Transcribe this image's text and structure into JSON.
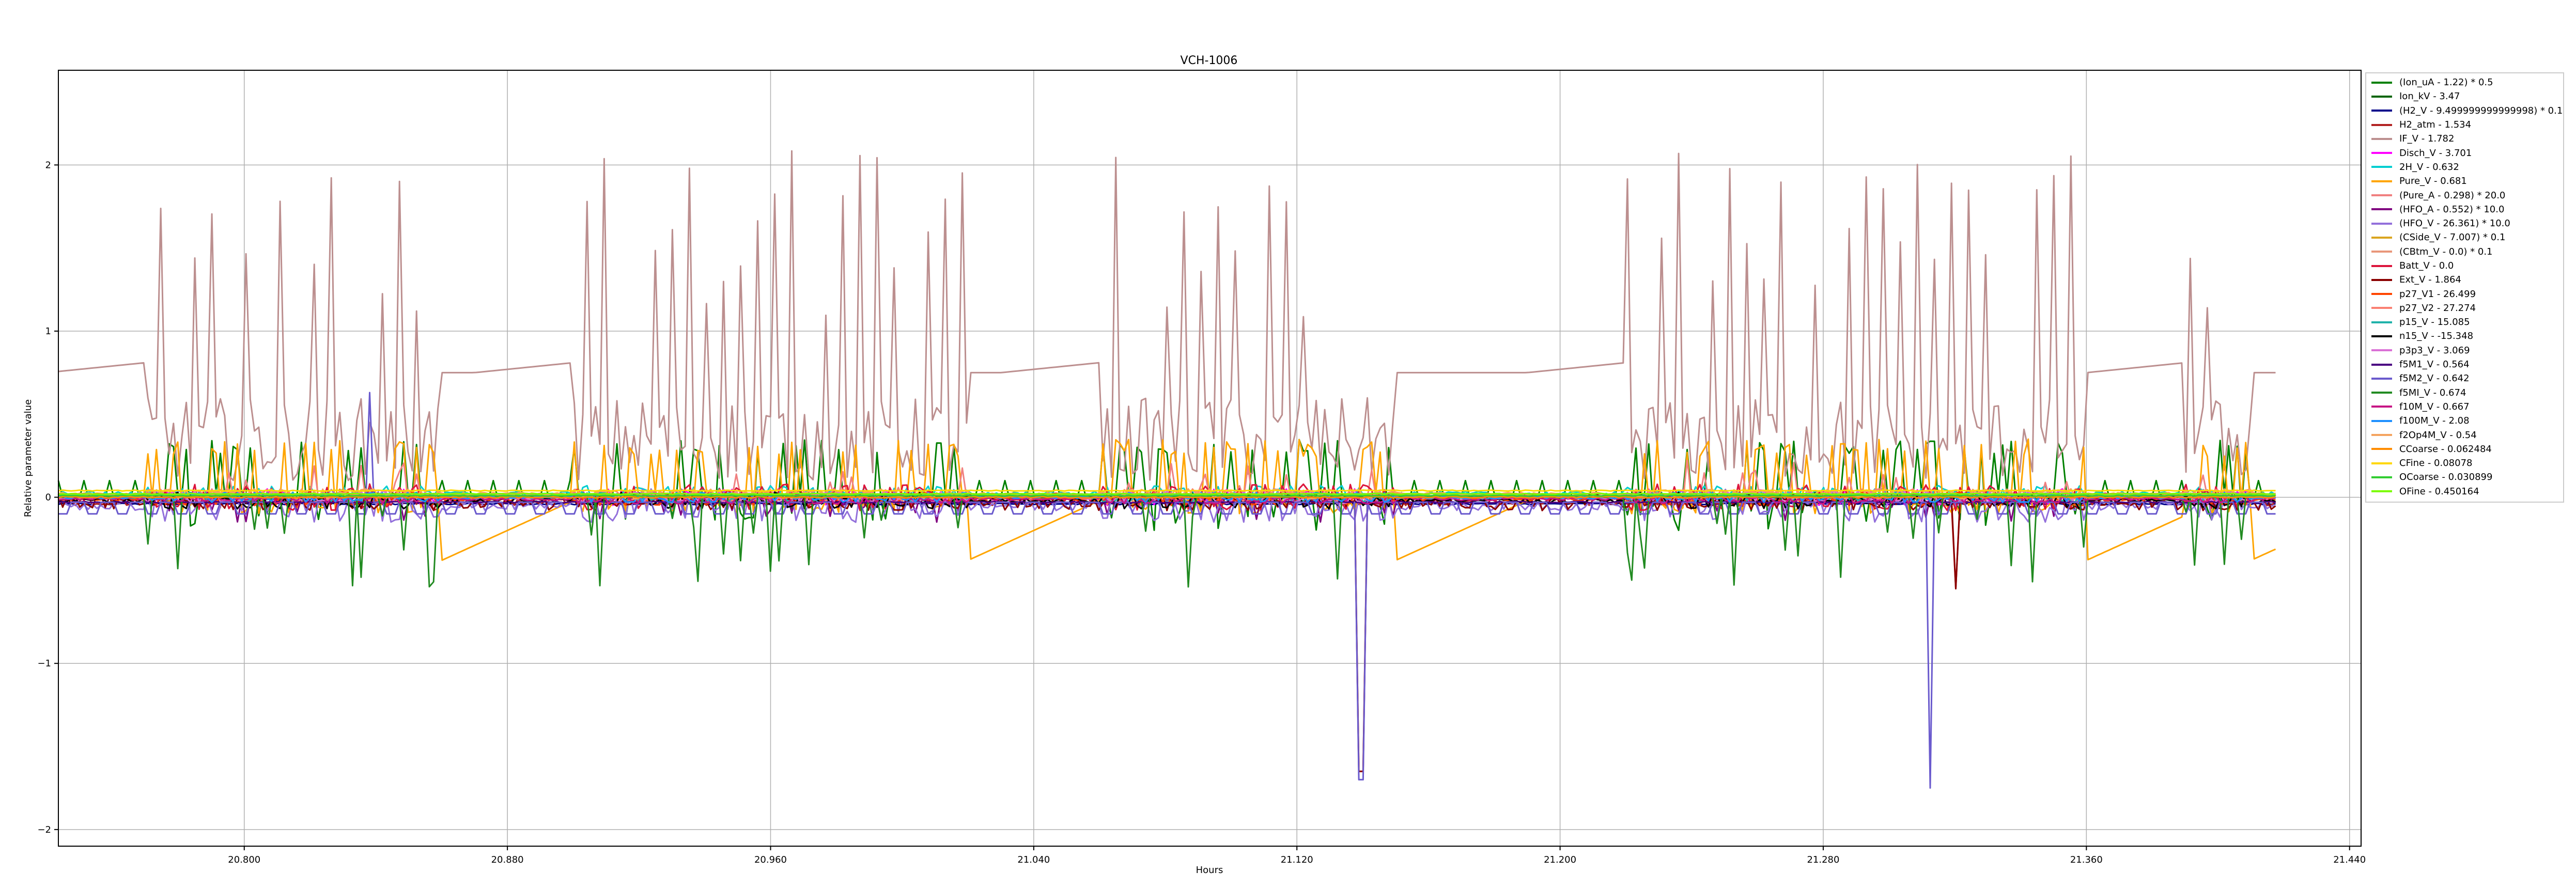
{
  "chart_data": {
    "type": "line",
    "title": "VCH-1006",
    "xlabel": "Hours",
    "ylabel": "Relative parameter value",
    "xlim": [
      20.7435,
      21.4435
    ],
    "ylim": [
      -2.1,
      2.57
    ],
    "xticks": [
      "20.800",
      "20.880",
      "20.960",
      "21.040",
      "21.120",
      "21.200",
      "21.280",
      "21.360",
      "21.440"
    ],
    "yticks": [
      "2",
      "1",
      "0",
      "−1",
      "−2"
    ],
    "ytick_values": [
      2,
      1,
      0,
      -1,
      -2
    ],
    "grid": true,
    "legend_position": "outside-right",
    "data_end_hour": 21.4175,
    "series": [
      {
        "name": "(Ion_uA - 1.22) * 0.5",
        "color": "#008000",
        "base": 0.0,
        "amp": 0.12,
        "style": "ion"
      },
      {
        "name": "Ion_kV - 3.47",
        "color": "#006400",
        "base": 0.0,
        "amp": 0.0,
        "style": "flat"
      },
      {
        "name": "(H2_V - 9.499999999999998) * 0.1",
        "color": "#00008b",
        "base": -0.04,
        "amp": 0.03,
        "style": "flat"
      },
      {
        "name": "H2_atm - 1.534",
        "color": "#b22222",
        "base": -0.02,
        "amp": 0.06,
        "style": "ext"
      },
      {
        "name": "IF_V - 1.782",
        "color": "#bc8f8f",
        "base": 0.75,
        "amp": 1.3,
        "style": "ifv"
      },
      {
        "name": "Disch_V - 3.701",
        "color": "#ff00ff",
        "base": 0.0,
        "amp": 0.05,
        "style": "noise"
      },
      {
        "name": "2H_V - 0.632",
        "color": "#00ced1",
        "base": 0.02,
        "amp": 0.05,
        "style": "noise"
      },
      {
        "name": "Pure_V - 0.681",
        "color": "#ffa500",
        "base": -0.36,
        "amp": 0.3,
        "style": "pure"
      },
      {
        "name": "(Pure_A - 0.298) * 20.0",
        "color": "#f08080",
        "base": 0.0,
        "amp": 0.15,
        "style": "spiky"
      },
      {
        "name": "(HFO_A - 0.552) * 10.0",
        "color": "#800080",
        "base": 0.0,
        "amp": 0.1,
        "style": "spiky"
      },
      {
        "name": "(HFO_V - 26.361) * 10.0",
        "color": "#9370db",
        "base": -0.05,
        "amp": 0.1,
        "style": "noise"
      },
      {
        "name": "(CSide_V - 7.007) * 0.1",
        "color": "#daa520",
        "base": 0.02,
        "amp": 0.03,
        "style": "flat"
      },
      {
        "name": "(CBtm_V - 0.0) * 0.1",
        "color": "#e9967a",
        "base": 0.0,
        "amp": 0.02,
        "style": "flat"
      },
      {
        "name": "Batt_V - 0.0",
        "color": "#dc143c",
        "base": 0.0,
        "amp": 0.08,
        "style": "noise"
      },
      {
        "name": "Ext_V - 1.864",
        "color": "#8b0000",
        "base": -0.03,
        "amp": 0.1,
        "style": "ext"
      },
      {
        "name": "p27_V1 - 26.499",
        "color": "#ff4500",
        "base": -0.01,
        "amp": 0.04,
        "style": "noise"
      },
      {
        "name": "p27_V2 - 27.274",
        "color": "#fa8072",
        "base": 0.01,
        "amp": 0.04,
        "style": "noise"
      },
      {
        "name": "p15_V - 15.085",
        "color": "#20b2aa",
        "base": 0.0,
        "amp": 0.03,
        "style": "noise"
      },
      {
        "name": "n15_V - -15.348",
        "color": "#000000",
        "base": -0.02,
        "amp": 0.05,
        "style": "noise"
      },
      {
        "name": "p3p3_V - 3.069",
        "color": "#da70d6",
        "base": 0.0,
        "amp": 0.04,
        "style": "noise"
      },
      {
        "name": "f5M1_V - 0.564",
        "color": "#4b0082",
        "base": -0.03,
        "amp": 0.03,
        "style": "flat"
      },
      {
        "name": "f5M2_V - 0.642",
        "color": "#6a5acd",
        "base": -0.05,
        "amp": 0.1,
        "style": "f5m2"
      },
      {
        "name": "f5MI_V - 0.674",
        "color": "#228b22",
        "base": 0.0,
        "amp": 0.15,
        "style": "f5mi"
      },
      {
        "name": "f10M_V - 0.667",
        "color": "#c71585",
        "base": -0.01,
        "amp": 0.03,
        "style": "noise"
      },
      {
        "name": "f100M_V - 2.08",
        "color": "#1e90ff",
        "base": 0.0,
        "amp": 0.03,
        "style": "noise"
      },
      {
        "name": "f2Op4M_V - 0.54",
        "color": "#f4a460",
        "base": 0.02,
        "amp": 0.03,
        "style": "noise"
      },
      {
        "name": "CCoarse - 0.062484",
        "color": "#ff8c00",
        "base": 0.0,
        "amp": 0.03,
        "style": "flat"
      },
      {
        "name": "CFine - 0.08078",
        "color": "#ffd700",
        "base": 0.04,
        "amp": 0.02,
        "style": "flat"
      },
      {
        "name": "OCoarse - 0.030899",
        "color": "#32cd32",
        "base": 0.01,
        "amp": 0.02,
        "style": "flat"
      },
      {
        "name": "OFine - 0.450164",
        "color": "#7cfc00",
        "base": 0.02,
        "amp": 0.02,
        "style": "flat"
      }
    ]
  }
}
